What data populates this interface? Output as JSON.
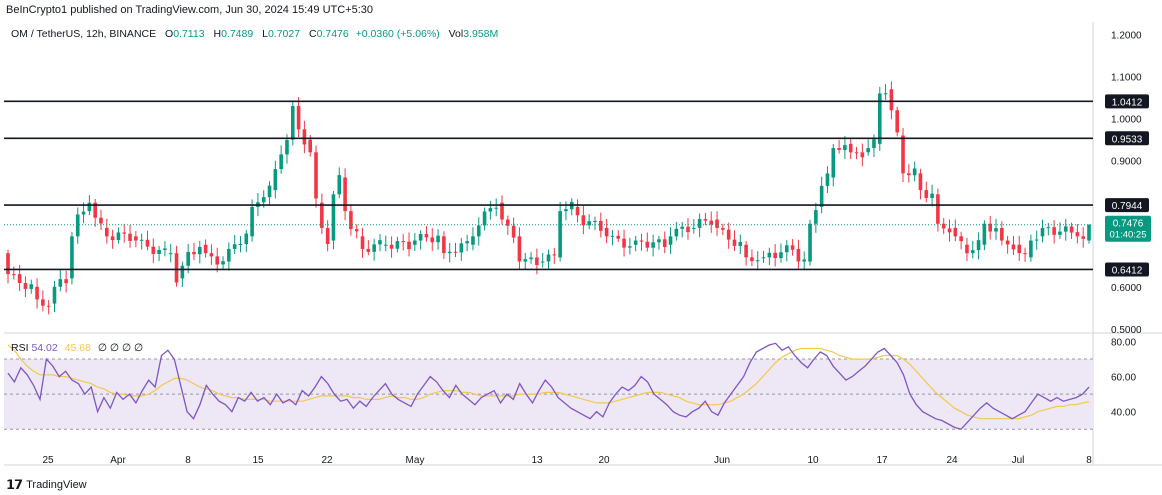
{
  "header": "BeInCrypto1 published on TradingView.com, Jun 30, 2024 15:49 UTC+5:30",
  "symbol": {
    "name": "OM / TetherUS, 12h, BINANCE",
    "o_label": "O",
    "o": "0.7113",
    "h_label": "H",
    "h": "0.7489",
    "l_label": "L",
    "l": "0.7027",
    "c_label": "C",
    "c": "0.7476",
    "change": "+0.0360 (+5.06%)",
    "vol_label": "Vol",
    "vol": "3.958M"
  },
  "rsi_legend": {
    "label": "RSI",
    "rsi": "54.02",
    "ma": "45.68",
    "zeros": "∅ ∅ ∅ ∅"
  },
  "logo_text": "TradingView",
  "colors": {
    "up": "#089981",
    "down": "#f23645",
    "rsi": "#7e57c2",
    "rsi_ma": "#f2c94c",
    "band": "#ede7f6"
  },
  "chart_data": [
    {
      "type": "candlestick",
      "y_ticks": [
        "1.2000",
        "1.1000",
        "1.0000",
        "0.9000",
        "0.6000",
        "0.5000"
      ],
      "ylim": [
        0.49,
        1.23
      ],
      "x_ticks": [
        "25",
        "Apr",
        "8",
        "15",
        "22",
        "May",
        "13",
        "20",
        "Jun",
        "10",
        "17",
        "24",
        "Jul",
        "8"
      ],
      "levels": [
        {
          "value": 1.0412,
          "label": "1.0412"
        },
        {
          "value": 0.9533,
          "label": "0.9533"
        },
        {
          "value": 0.7944,
          "label": "0.7944"
        },
        {
          "value": 0.6412,
          "label": "0.6412"
        }
      ],
      "last_price": {
        "value": 0.7476,
        "label": "0.7476",
        "countdown": "01:40:25"
      },
      "anchors": [
        [
          0,
          0.68,
          0.63
        ],
        [
          5,
          0.6,
          0.57
        ],
        [
          8,
          0.56,
          0.6
        ],
        [
          11,
          0.62,
          0.72
        ],
        [
          14,
          0.78,
          0.8
        ],
        [
          17,
          0.74,
          0.72
        ],
        [
          22,
          0.72,
          0.71
        ],
        [
          28,
          0.68,
          0.68
        ],
        [
          30,
          0.62,
          0.65
        ],
        [
          34,
          0.7,
          0.68
        ],
        [
          38,
          0.66,
          0.69
        ],
        [
          42,
          0.72,
          0.79
        ],
        [
          46,
          0.83,
          0.88
        ],
        [
          49,
          0.95,
          1.03
        ],
        [
          52,
          0.95,
          0.92
        ],
        [
          54,
          0.8,
          0.74
        ],
        [
          56,
          0.71,
          0.82
        ],
        [
          58,
          0.86,
          0.78
        ],
        [
          61,
          0.72,
          0.69
        ],
        [
          65,
          0.7,
          0.7
        ],
        [
          70,
          0.7,
          0.71
        ],
        [
          75,
          0.72,
          0.68
        ],
        [
          80,
          0.7,
          0.72
        ],
        [
          85,
          0.8,
          0.76
        ],
        [
          88,
          0.72,
          0.66
        ],
        [
          92,
          0.66,
          0.66
        ],
        [
          95,
          0.67,
          0.78
        ],
        [
          98,
          0.79,
          0.77
        ],
        [
          103,
          0.74,
          0.72
        ],
        [
          108,
          0.7,
          0.71
        ],
        [
          114,
          0.7,
          0.72
        ],
        [
          118,
          0.74,
          0.74
        ],
        [
          122,
          0.76,
          0.74
        ],
        [
          127,
          0.7,
          0.67
        ],
        [
          130,
          0.67,
          0.67
        ],
        [
          136,
          0.69,
          0.66
        ],
        [
          138,
          0.66,
          0.75
        ],
        [
          140,
          0.79,
          0.84
        ],
        [
          142,
          0.86,
          0.93
        ],
        [
          145,
          0.94,
          0.92
        ],
        [
          148,
          0.92,
          0.93
        ],
        [
          150,
          0.94,
          1.06
        ],
        [
          152,
          1.07,
          1.02
        ],
        [
          154,
          0.96,
          0.87
        ],
        [
          157,
          0.87,
          0.83
        ],
        [
          160,
          0.82,
          0.75
        ],
        [
          163,
          0.74,
          0.72
        ],
        [
          165,
          0.7,
          0.68
        ],
        [
          168,
          0.7,
          0.75
        ],
        [
          171,
          0.74,
          0.71
        ],
        [
          174,
          0.7,
          0.68
        ],
        [
          176,
          0.67,
          0.71
        ],
        [
          178,
          0.72,
          0.74
        ],
        [
          184,
          0.73,
          0.72
        ],
        [
          186,
          0.71,
          0.7476
        ]
      ]
    },
    {
      "type": "line",
      "y_ticks": [
        "80.00",
        "60.00",
        "40.00"
      ],
      "ylim": [
        25,
        82
      ],
      "bands": {
        "upper": 70,
        "middle": 50,
        "lower": 30
      },
      "series": [
        {
          "name": "RSI",
          "values": [
            62,
            57,
            65,
            61,
            55,
            47,
            70,
            66,
            60,
            63,
            58,
            56,
            50,
            54,
            40,
            48,
            42,
            51,
            47,
            50,
            45,
            52,
            58,
            54,
            72,
            75,
            70,
            55,
            40,
            36,
            44,
            55,
            50,
            46,
            44,
            40,
            48,
            46,
            51,
            46,
            48,
            44,
            50,
            45,
            47,
            44,
            52,
            49,
            54,
            60,
            56,
            50,
            46,
            47,
            42,
            46,
            43,
            48,
            52,
            56,
            50,
            47,
            45,
            43,
            50,
            55,
            60,
            57,
            52,
            48,
            55,
            50,
            47,
            44,
            48,
            50,
            52,
            45,
            50,
            47,
            56,
            50,
            45,
            52,
            58,
            54,
            48,
            45,
            42,
            40,
            38,
            36,
            40,
            37,
            45,
            50,
            54,
            52,
            55,
            60,
            57,
            50,
            47,
            44,
            40,
            38,
            37,
            40,
            42,
            46,
            40,
            38,
            45,
            50,
            55,
            60,
            68,
            74,
            76,
            78,
            79,
            75,
            77,
            72,
            68,
            65,
            70,
            74,
            72,
            66,
            62,
            58,
            60,
            63,
            66,
            70,
            74,
            76,
            72,
            68,
            61,
            50,
            44,
            40,
            38,
            36,
            35,
            33,
            31,
            30,
            34,
            38,
            42,
            45,
            42,
            40,
            38,
            36,
            38,
            40,
            45,
            50,
            48,
            46,
            48,
            46,
            47,
            48,
            50,
            54
          ]
        },
        {
          "name": "MA",
          "values": [
            78,
            75,
            70,
            66,
            63,
            61,
            61,
            61,
            60,
            60,
            59,
            58,
            57,
            56,
            54,
            53,
            51,
            50,
            50,
            49,
            49,
            49,
            50,
            52,
            55,
            57,
            59,
            59,
            58,
            56,
            54,
            53,
            52,
            50,
            49,
            48,
            48,
            47,
            47,
            47,
            47,
            46,
            46,
            46,
            46,
            46,
            46,
            47,
            48,
            49,
            49,
            49,
            49,
            49,
            48,
            48,
            47,
            47,
            47,
            48,
            49,
            48,
            48,
            47,
            47,
            48,
            50,
            51,
            52,
            52,
            52,
            51,
            51,
            50,
            49,
            49,
            49,
            49,
            49,
            49,
            50,
            50,
            50,
            50,
            51,
            51,
            51,
            50,
            49,
            48,
            47,
            46,
            45,
            45,
            45,
            46,
            47,
            48,
            49,
            50,
            51,
            51,
            51,
            50,
            49,
            48,
            46,
            45,
            44,
            44,
            44,
            44,
            45,
            46,
            48,
            50,
            53,
            56,
            60,
            64,
            68,
            71,
            73,
            75,
            76,
            76,
            76,
            76,
            75,
            74,
            72,
            71,
            70,
            70,
            70,
            70,
            71,
            72,
            72,
            72,
            70,
            67,
            63,
            59,
            55,
            51,
            48,
            45,
            42,
            40,
            38,
            37,
            36,
            36,
            36,
            36,
            36,
            36,
            36,
            37,
            38,
            40,
            41,
            42,
            43,
            43,
            44,
            44,
            45,
            45.68
          ]
        }
      ]
    }
  ]
}
